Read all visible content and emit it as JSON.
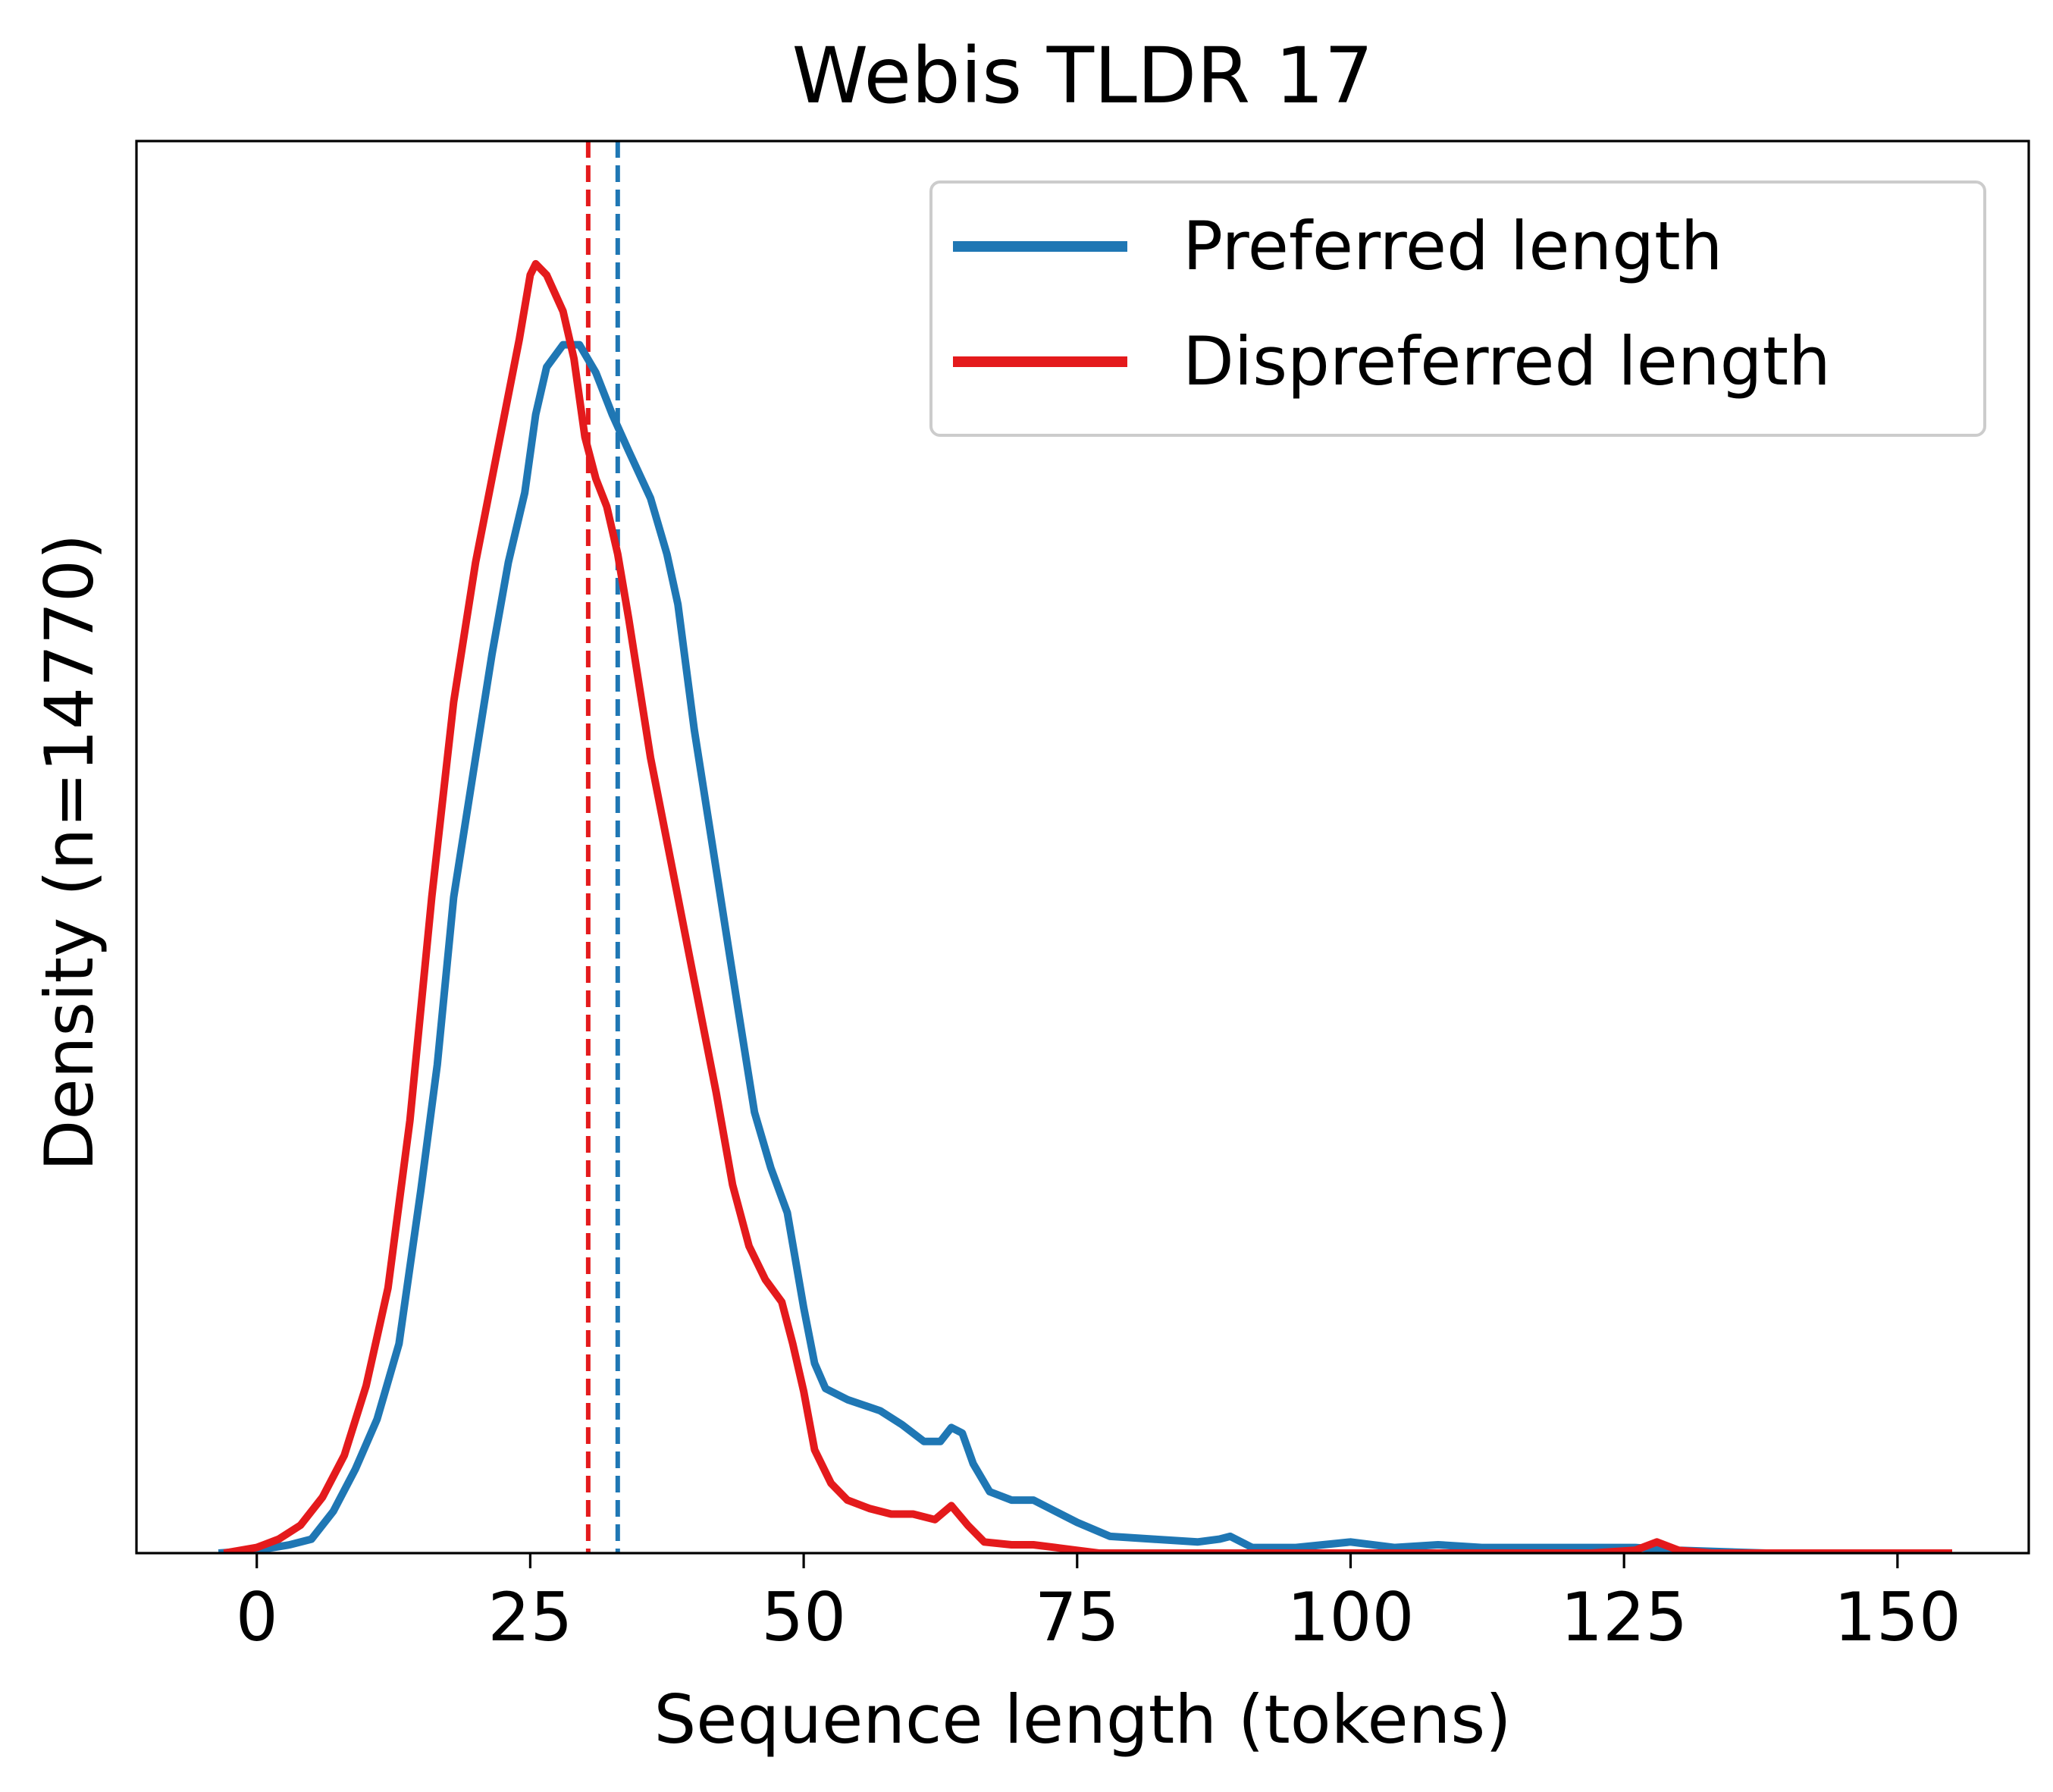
{
  "chart_data": {
    "type": "line",
    "title": "Webis TLDR 17",
    "xlabel": "Sequence length (tokens)",
    "ylabel": "Density (n=14770)",
    "xlim": [
      -11,
      162
    ],
    "ylim": [
      0,
      0.0506
    ],
    "x_ticks": [
      0,
      25,
      50,
      75,
      100,
      125,
      150
    ],
    "y_ticks_visible": false,
    "grid": false,
    "legend_position": "top-right",
    "series": [
      {
        "name": "Preferred length",
        "color": "#1f77b4",
        "mean": 33,
        "points": [
          [
            -3.5,
            0
          ],
          [
            0,
            0.0001
          ],
          [
            3,
            0.0003
          ],
          [
            5,
            0.0005
          ],
          [
            7,
            0.0015
          ],
          [
            9,
            0.003
          ],
          [
            11,
            0.0048
          ],
          [
            13,
            0.0075
          ],
          [
            15,
            0.013
          ],
          [
            16.5,
            0.0175
          ],
          [
            18,
            0.0235
          ],
          [
            20,
            0.0285
          ],
          [
            21.5,
            0.0322
          ],
          [
            23,
            0.0355
          ],
          [
            24.5,
            0.038
          ],
          [
            25.5,
            0.0408
          ],
          [
            26.5,
            0.0425
          ],
          [
            28,
            0.0433
          ],
          [
            29.5,
            0.0433
          ],
          [
            31,
            0.0423
          ],
          [
            32.5,
            0.0408
          ],
          [
            34,
            0.0395
          ],
          [
            36,
            0.0378
          ],
          [
            37.5,
            0.0358
          ],
          [
            38.5,
            0.034
          ],
          [
            40,
            0.0295
          ],
          [
            42,
            0.0245
          ],
          [
            44,
            0.0195
          ],
          [
            45.5,
            0.0158
          ],
          [
            47,
            0.0138
          ],
          [
            48.5,
            0.0122
          ],
          [
            50,
            0.0088
          ],
          [
            51,
            0.0068
          ],
          [
            52,
            0.0059
          ],
          [
            54,
            0.0055
          ],
          [
            57,
            0.0051
          ],
          [
            59,
            0.0046
          ],
          [
            61,
            0.004
          ],
          [
            62.5,
            0.004
          ],
          [
            63.5,
            0.0045
          ],
          [
            64.5,
            0.0043
          ],
          [
            65.5,
            0.0032
          ],
          [
            67,
            0.0022
          ],
          [
            69,
            0.0019
          ],
          [
            71,
            0.0019
          ],
          [
            73,
            0.0015
          ],
          [
            75,
            0.0011
          ],
          [
            78,
            0.0006
          ],
          [
            82,
            0.0005
          ],
          [
            86,
            0.0004
          ],
          [
            88,
            0.0005
          ],
          [
            89,
            0.0006
          ],
          [
            91,
            0.0002
          ],
          [
            95,
            0.0002
          ],
          [
            100,
            0.0004
          ],
          [
            104,
            0.0002
          ],
          [
            108,
            0.0003
          ],
          [
            112,
            0.0002
          ],
          [
            120,
            0.0002
          ],
          [
            126,
            0.0002
          ],
          [
            130,
            0.0001
          ],
          [
            138,
            0
          ]
        ]
      },
      {
        "name": "Dispreferred length",
        "color": "#e41a1c",
        "mean": 30.3,
        "points": [
          [
            -3,
            0
          ],
          [
            0,
            0.0002
          ],
          [
            2,
            0.0005
          ],
          [
            4,
            0.001
          ],
          [
            6,
            0.002
          ],
          [
            8,
            0.0035
          ],
          [
            10,
            0.006
          ],
          [
            12,
            0.0095
          ],
          [
            14,
            0.0155
          ],
          [
            16,
            0.0235
          ],
          [
            18,
            0.0305
          ],
          [
            20,
            0.0355
          ],
          [
            22,
            0.0395
          ],
          [
            24,
            0.0435
          ],
          [
            25,
            0.0458
          ],
          [
            25.5,
            0.0462
          ],
          [
            26.5,
            0.0458
          ],
          [
            28,
            0.0445
          ],
          [
            29,
            0.0428
          ],
          [
            30,
            0.04
          ],
          [
            31,
            0.0385
          ],
          [
            32,
            0.0375
          ],
          [
            33,
            0.0358
          ],
          [
            34,
            0.0335
          ],
          [
            36,
            0.0285
          ],
          [
            38,
            0.0245
          ],
          [
            40,
            0.0205
          ],
          [
            42,
            0.0165
          ],
          [
            43.5,
            0.0132
          ],
          [
            45,
            0.011
          ],
          [
            46.5,
            0.0098
          ],
          [
            48,
            0.009
          ],
          [
            49,
            0.0075
          ],
          [
            50,
            0.0058
          ],
          [
            51,
            0.0037
          ],
          [
            52.5,
            0.0025
          ],
          [
            54,
            0.0019
          ],
          [
            56,
            0.0016
          ],
          [
            58,
            0.0014
          ],
          [
            60,
            0.0014
          ],
          [
            62,
            0.0012
          ],
          [
            63.5,
            0.0017
          ],
          [
            65,
            0.001
          ],
          [
            66.5,
            0.0004
          ],
          [
            69,
            0.0003
          ],
          [
            71,
            0.0003
          ],
          [
            73,
            0.0002
          ],
          [
            75,
            0.0001
          ],
          [
            77,
            0
          ],
          [
            85,
            0
          ],
          [
            122,
            0
          ],
          [
            126,
            0.0001
          ],
          [
            128,
            0.0004
          ],
          [
            130,
            0.0001
          ],
          [
            133,
            0
          ],
          [
            155,
            0
          ]
        ]
      }
    ]
  }
}
